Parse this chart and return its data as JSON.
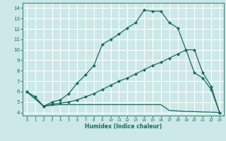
{
  "xlabel": "Humidex (Indice chaleur)",
  "background_color": "#cce8e8",
  "line_color": "#1a6b5a",
  "grid_color": "#b8d8d8",
  "xlim": [
    -0.5,
    23.5
  ],
  "ylim": [
    3.7,
    14.5
  ],
  "xticks": [
    0,
    1,
    2,
    3,
    4,
    5,
    6,
    7,
    8,
    9,
    10,
    11,
    12,
    13,
    14,
    15,
    16,
    17,
    18,
    19,
    20,
    21,
    22,
    23
  ],
  "yticks": [
    4,
    5,
    6,
    7,
    8,
    9,
    10,
    11,
    12,
    13,
    14
  ],
  "curve1_x": [
    0,
    1,
    2,
    3,
    4,
    5,
    6,
    7,
    8,
    9,
    10,
    11,
    12,
    13,
    14,
    15,
    16,
    17,
    18,
    19,
    20,
    21,
    22,
    23
  ],
  "curve1_y": [
    6.0,
    5.5,
    4.6,
    5.0,
    5.2,
    5.8,
    6.8,
    7.6,
    8.5,
    10.5,
    11.0,
    11.5,
    12.1,
    12.6,
    13.8,
    13.7,
    13.7,
    12.6,
    12.1,
    10.0,
    7.8,
    7.3,
    6.2,
    4.0
  ],
  "curve2_x": [
    0,
    2,
    3,
    4,
    5,
    6,
    7,
    8,
    9,
    10,
    11,
    12,
    13,
    14,
    15,
    16,
    17,
    18,
    19,
    20,
    21,
    22,
    23
  ],
  "curve2_y": [
    6.0,
    4.6,
    4.8,
    4.9,
    5.0,
    5.2,
    5.5,
    5.8,
    6.2,
    6.6,
    7.0,
    7.3,
    7.7,
    8.1,
    8.5,
    8.8,
    9.2,
    9.6,
    10.0,
    10.0,
    7.8,
    6.5,
    4.0
  ],
  "curve3_x": [
    0,
    2,
    3,
    4,
    5,
    6,
    7,
    8,
    9,
    10,
    11,
    12,
    13,
    14,
    15,
    16,
    17,
    18,
    19,
    20,
    21,
    22,
    23
  ],
  "curve3_y": [
    6.0,
    4.6,
    4.7,
    4.75,
    4.75,
    4.75,
    4.75,
    4.75,
    4.75,
    4.75,
    4.75,
    4.75,
    4.75,
    4.75,
    4.75,
    4.75,
    4.2,
    4.15,
    4.1,
    4.08,
    4.05,
    4.03,
    4.0
  ]
}
